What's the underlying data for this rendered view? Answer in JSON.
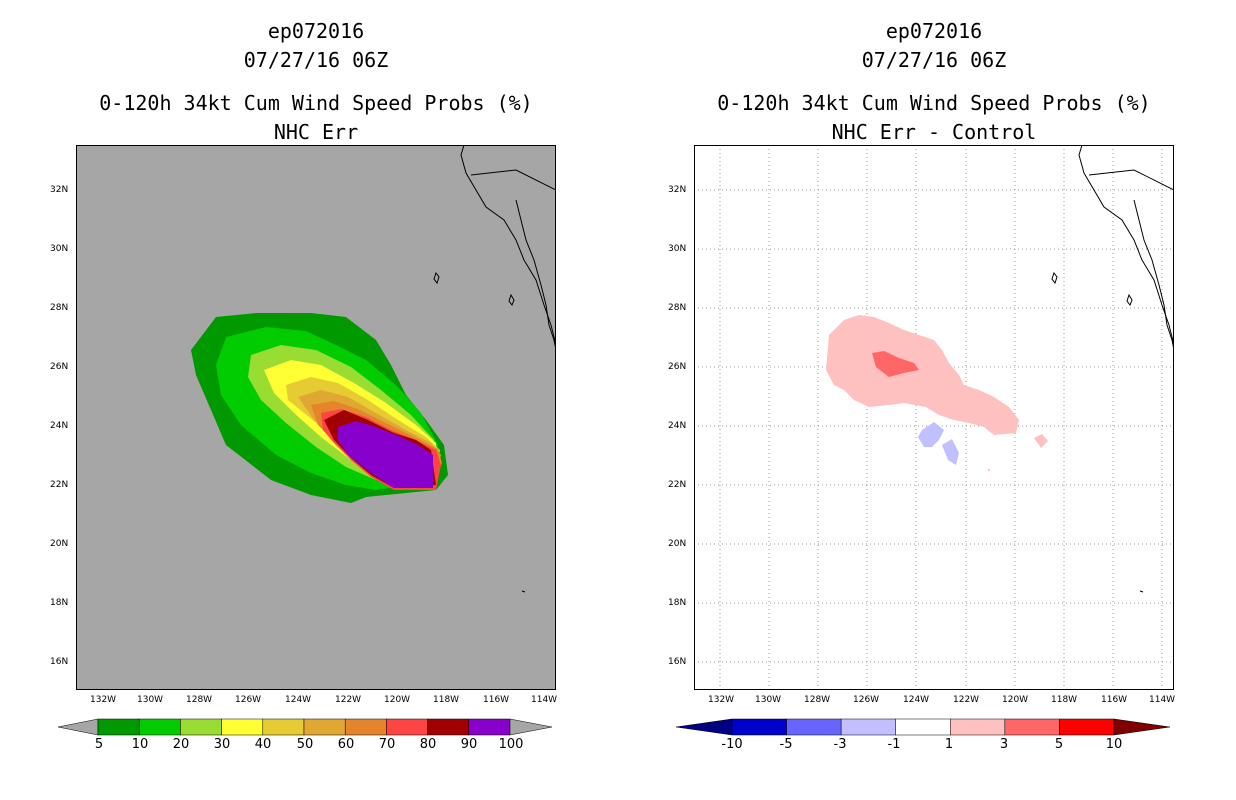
{
  "panels": [
    {
      "id": "left",
      "header_line1": "ep072016",
      "header_line2": "07/27/16 06Z",
      "title_line1": "0-120h 34kt Cum Wind Speed Probs (%)",
      "title_line2": "NHC Err",
      "lon_ticks": [
        "132W",
        "130W",
        "128W",
        "126W",
        "124W",
        "122W",
        "120W",
        "118W",
        "116W",
        "114W"
      ],
      "lat_ticks": [
        "32N",
        "30N",
        "28N",
        "26N",
        "24N",
        "22N",
        "20N",
        "18N",
        "16N"
      ],
      "colorbar": {
        "colors": [
          "#009900",
          "#00cc00",
          "#99dd33",
          "#ffff33",
          "#e6cc33",
          "#e0a833",
          "#e6842c",
          "#ff4444",
          "#a00000",
          "#8800cc"
        ],
        "under_color": "#a6a6a6",
        "over_color": "#a6a6a6",
        "labels": [
          "5",
          "10",
          "20",
          "30",
          "40",
          "50",
          "60",
          "70",
          "80",
          "90",
          "100"
        ]
      }
    },
    {
      "id": "right",
      "header_line1": "ep072016",
      "header_line2": "07/27/16 06Z",
      "title_line1": "0-120h 34kt Cum Wind Speed Probs (%)",
      "title_line2": "NHC Err - Control",
      "lon_ticks": [
        "132W",
        "130W",
        "128W",
        "126W",
        "124W",
        "122W",
        "120W",
        "118W",
        "116W",
        "114W"
      ],
      "lat_ticks": [
        "32N",
        "30N",
        "28N",
        "26N",
        "24N",
        "22N",
        "20N",
        "18N",
        "16N"
      ],
      "colorbar": {
        "colors": [
          "#0000cc",
          "#6666ff",
          "#c0c0ff",
          "#ffffff",
          "#ffc0c0",
          "#ff6666",
          "#ff0000"
        ],
        "under_color": "#000080",
        "over_color": "#800000",
        "labels": [
          "-10",
          "-5",
          "-3",
          "-1",
          "1",
          "3",
          "5",
          "10"
        ]
      }
    }
  ]
}
